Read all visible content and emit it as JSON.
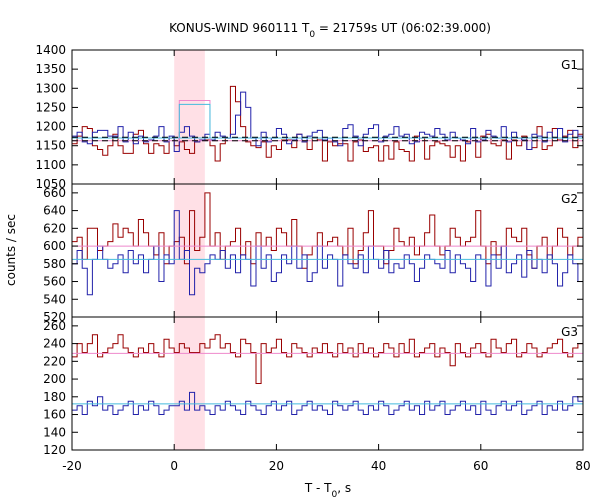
{
  "chart_data": {
    "type": "line",
    "title": "KONUS-WIND 960111 T",
    "title_sub": "0",
    "title_rest": " = 21759s UT (06:02:39.000)",
    "xlabel": "T - T",
    "xlabel_sub": "0",
    "xlabel_rest": ", s",
    "ylabel": "counts / sec",
    "xlim": [
      -20,
      80
    ],
    "x_ticks": [
      -20,
      0,
      20,
      40,
      60,
      80
    ],
    "highlight_interval": [
      0,
      6
    ],
    "colors": {
      "series_red": "#990000",
      "series_blue": "#2222aa",
      "fit_pink": "#ee88cc",
      "fit_cyan": "#44bbdd",
      "highlight": "#ffe0e6",
      "dashed": "#000000"
    },
    "panels": [
      {
        "label": "G1",
        "ylim": [
          1050,
          1400
        ],
        "y_ticks": [
          1050,
          1100,
          1150,
          1200,
          1250,
          1300,
          1350,
          1400
        ],
        "red_baseline": 1163,
        "blue_baseline": 1170,
        "red_peak_level": 1268,
        "blue_peak_level": 1258,
        "peak_interval": [
          1,
          7
        ],
        "dashed_levels": [
          1163,
          1172
        ],
        "series": [
          {
            "color": "red",
            "values": [
              1155,
              1175,
              1200,
              1195,
              1150,
              1140,
              1125,
              1150,
              1180,
              1150,
              1130,
              1130,
              1180,
              1190,
              1155,
              1130,
              1155,
              1150,
              1130,
              1170,
              1150,
              1160,
              1140,
              1130,
              1160,
              1165,
              1165,
              1150,
              1110,
              1155,
              1170,
              1305,
              1265,
              1200,
              1160,
              1150,
              1145,
              1160,
              1120,
              1150,
              1140,
              1165,
              1165,
              1145,
              1180,
              1160,
              1140,
              1170,
              1165,
              1110,
              1160,
              1150,
              1155,
              1155,
              1110,
              1160,
              1165,
              1135,
              1145,
              1150,
              1110,
              1150,
              1115,
              1160,
              1140,
              1135,
              1110,
              1175,
              1170,
              1115,
              1150,
              1160,
              1155,
              1150,
              1120,
              1150,
              1110,
              1160,
              1170,
              1120,
              1175,
              1180,
              1155,
              1150,
              1165,
              1115,
              1165,
              1150,
              1175,
              1140,
              1145,
              1200,
              1140,
              1150,
              1195,
              1165,
              1175,
              1190,
              1145,
              1180
            ]
          },
          {
            "color": "blue",
            "values": [
              1175,
              1185,
              1160,
              1155,
              1185,
              1190,
              1190,
              1175,
              1175,
              1200,
              1160,
              1185,
              1155,
              1175,
              1160,
              1165,
              1175,
              1200,
              1160,
              1175,
              1135,
              1185,
              1200,
              1175,
              1160,
              1165,
              1180,
              1165,
              1185,
              1175,
              1170,
              1180,
              1230,
              1290,
              1250,
              1170,
              1150,
              1185,
              1160,
              1170,
              1195,
              1180,
              1155,
              1165,
              1180,
              1160,
              1175,
              1185,
              1190,
              1165,
              1170,
              1160,
              1150,
              1195,
              1205,
              1175,
              1150,
              1180,
              1195,
              1205,
              1160,
              1175,
              1180,
              1200,
              1175,
              1180,
              1155,
              1160,
              1185,
              1180,
              1175,
              1195,
              1180,
              1165,
              1185,
              1170,
              1165,
              1155,
              1195,
              1160,
              1165,
              1190,
              1175,
              1170,
              1200,
              1160,
              1185,
              1170,
              1165,
              1140,
              1180,
              1175,
              1160,
              1185,
              1170,
              1195,
              1160,
              1180,
              1190,
              1175
            ]
          }
        ]
      },
      {
        "label": "G2",
        "ylim": [
          520,
          670
        ],
        "y_ticks": [
          520,
          540,
          560,
          580,
          600,
          620,
          640,
          660
        ],
        "red_baseline": 600,
        "blue_baseline": 585,
        "series": [
          {
            "color": "red",
            "values": [
              605,
              610,
              585,
              620,
              620,
              595,
              600,
              605,
              625,
              610,
              620,
              615,
              600,
              630,
              615,
              600,
              590,
              615,
              580,
              600,
              605,
              610,
              580,
              640,
              595,
              610,
              660,
              600,
              615,
              585,
              600,
              605,
              620,
              590,
              605,
              580,
              615,
              600,
              610,
              595,
              620,
              615,
              600,
              630,
              600,
              575,
              590,
              600,
              615,
              600,
              605,
              610,
              600,
              590,
              620,
              580,
              595,
              615,
              640,
              600,
              600,
              580,
              595,
              620,
              605,
              600,
              610,
              590,
              600,
              615,
              635,
              600,
              590,
              600,
              620,
              610,
              600,
              605,
              610,
              640,
              600,
              580,
              605,
              590,
              600,
              620,
              610,
              605,
              620,
              590,
              575,
              600,
              610,
              585,
              600,
              620,
              610,
              590,
              600,
              610
            ]
          },
          {
            "color": "blue",
            "values": [
              580,
              595,
              575,
              545,
              585,
              600,
              585,
              575,
              580,
              590,
              570,
              595,
              580,
              590,
              570,
              585,
              600,
              560,
              590,
              580,
              640,
              585,
              595,
              545,
              575,
              570,
              580,
              590,
              585,
              595,
              575,
              590,
              570,
              590,
              585,
              555,
              600,
              575,
              590,
              560,
              570,
              590,
              580,
              600,
              575,
              590,
              560,
              570,
              600,
              575,
              590,
              585,
              555,
              590,
              580,
              575,
              590,
              570,
              600,
              585,
              575,
              595,
              570,
              580,
              575,
              590,
              580,
              560,
              575,
              590,
              585,
              580,
              575,
              595,
              570,
              590,
              580,
              575,
              560,
              590,
              585,
              555,
              590,
              575,
              600,
              570,
              580,
              590,
              565,
              595,
              575,
              585,
              570,
              590,
              580,
              555,
              570,
              590,
              580,
              560
            ]
          }
        ]
      },
      {
        "label": "G3",
        "ylim": [
          120,
          270
        ],
        "y_ticks": [
          120,
          140,
          160,
          180,
          200,
          220,
          240,
          260
        ],
        "red_baseline": 229,
        "blue_baseline": 172,
        "series": [
          {
            "color": "red",
            "values": [
              225,
              240,
              230,
              240,
              250,
              225,
              230,
              235,
              240,
              250,
              235,
              230,
              225,
              235,
              230,
              240,
              230,
              225,
              245,
              235,
              230,
              240,
              235,
              230,
              230,
              240,
              235,
              245,
              250,
              235,
              240,
              230,
              225,
              245,
              240,
              230,
              195,
              240,
              230,
              235,
              245,
              230,
              225,
              240,
              235,
              230,
              225,
              235,
              230,
              240,
              230,
              225,
              240,
              230,
              235,
              225,
              240,
              230,
              235,
              225,
              230,
              240,
              235,
              225,
              240,
              230,
              245,
              225,
              230,
              235,
              240,
              225,
              235,
              230,
              215,
              240,
              230,
              225,
              235,
              240,
              230,
              225,
              245,
              235,
              230,
              240,
              245,
              225,
              230,
              240,
              235,
              225,
              230,
              235,
              240,
              245,
              230,
              225,
              235,
              240
            ]
          },
          {
            "color": "blue",
            "values": [
              165,
              170,
              160,
              175,
              170,
              180,
              165,
              170,
              160,
              165,
              170,
              175,
              160,
              170,
              165,
              175,
              170,
              160,
              165,
              170,
              170,
              175,
              165,
              185,
              165,
              170,
              165,
              160,
              170,
              165,
              175,
              170,
              165,
              160,
              175,
              170,
              165,
              160,
              170,
              175,
              165,
              170,
              175,
              160,
              165,
              170,
              175,
              165,
              170,
              165,
              160,
              175,
              170,
              165,
              170,
              175,
              165,
              160,
              170,
              165,
              175,
              170,
              160,
              165,
              170,
              175,
              165,
              170,
              160,
              175,
              165,
              170,
              175,
              160,
              165,
              170,
              175,
              165,
              170,
              160,
              175,
              165,
              160,
              170,
              175,
              165,
              170,
              175,
              160,
              165,
              170,
              175,
              160,
              170,
              165,
              175,
              165,
              170,
              180,
              175
            ]
          }
        ]
      }
    ]
  }
}
